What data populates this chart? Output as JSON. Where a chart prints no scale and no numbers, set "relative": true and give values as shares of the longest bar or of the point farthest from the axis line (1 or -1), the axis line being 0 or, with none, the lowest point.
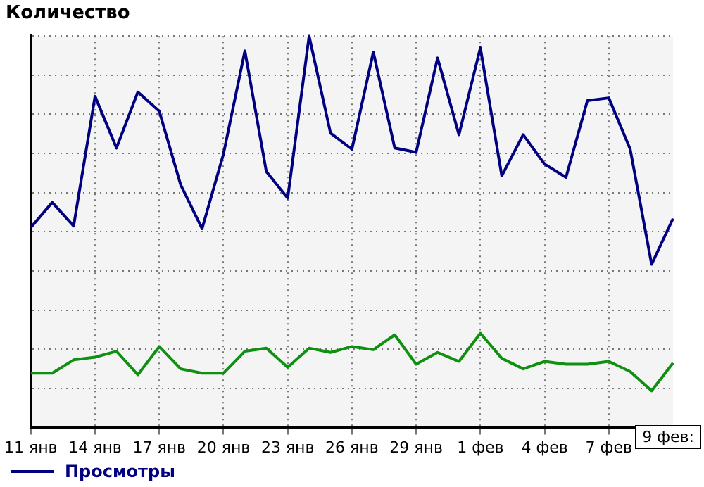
{
  "chart_data": {
    "type": "line",
    "title": "Количество",
    "relative": true,
    "grid": true,
    "legend": "bottom left",
    "marker": "none",
    "line_style": "solid",
    "categories": [
      "11 янв",
      null,
      null,
      "14 янв",
      null,
      null,
      "17 янв",
      null,
      null,
      "20 янв",
      null,
      null,
      "23 янв",
      null,
      null,
      "26 янв",
      null,
      null,
      "29 янв",
      null,
      null,
      "1 фев",
      null,
      null,
      "4 фев",
      null,
      null,
      "7 фев",
      null,
      null,
      null
    ],
    "series": [
      {
        "name": "Просмотры",
        "color": "#000080",
        "values": [
          0.511,
          0.575,
          0.515,
          0.846,
          0.714,
          0.857,
          0.808,
          0.62,
          0.508,
          0.699,
          0.962,
          0.654,
          0.586,
          1,
          0.752,
          0.711,
          0.959,
          0.714,
          0.703,
          0.944,
          0.748,
          0.97,
          0.643,
          0.748,
          0.673,
          0.639,
          0.835,
          0.842,
          0.711,
          0.417,
          0.534
        ]
      },
      {
        "color": "#109010",
        "values": [
          0.139,
          0.139,
          0.173,
          0.18,
          0.195,
          0.135,
          0.207,
          0.15,
          0.139,
          0.139,
          0.195,
          0.203,
          0.154,
          0.203,
          0.192,
          0.207,
          0.199,
          0.237,
          0.162,
          0.192,
          0.169,
          0.241,
          0.177,
          0.15,
          0.169,
          0.162,
          0.162,
          0.169,
          0.143,
          0.094,
          0.165
        ]
      }
    ],
    "annotations": [
      "9 фев:"
    ]
  }
}
